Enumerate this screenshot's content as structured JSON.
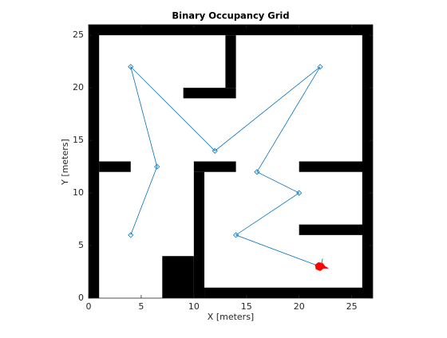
{
  "chart_data": {
    "type": "occupancy",
    "title": "Binary Occupancy Grid",
    "xlabel": "X [meters]",
    "ylabel": "Y [meters]",
    "xlim": [
      0,
      27
    ],
    "ylim": [
      0,
      26
    ],
    "xticks": [
      0,
      5,
      10,
      15,
      20,
      25
    ],
    "yticks": [
      0,
      5,
      10,
      15,
      20,
      25
    ],
    "obstacle_color": "#000000",
    "obstacles": [
      [
        0,
        0,
        1,
        26
      ],
      [
        0,
        25,
        27,
        1
      ],
      [
        26,
        0,
        1,
        26
      ],
      [
        11,
        0,
        16,
        1
      ],
      [
        7,
        0,
        3,
        4
      ],
      [
        10,
        0,
        1,
        12
      ],
      [
        13,
        20,
        1,
        5
      ],
      [
        9,
        19,
        5,
        1
      ],
      [
        1,
        12,
        3,
        1
      ],
      [
        10,
        12,
        4,
        1
      ],
      [
        20,
        12,
        7,
        1
      ],
      [
        20,
        6,
        7,
        1
      ]
    ],
    "series": [
      {
        "color": "#0072bd",
        "x": [
          4,
          6.5,
          4,
          12,
          22,
          16,
          20,
          14,
          22
        ],
        "y": [
          6,
          12.5,
          22,
          14,
          22,
          12,
          10,
          6,
          3
        ]
      }
    ],
    "robot": {
      "x": 22,
      "y": 3,
      "color": "#ff0000"
    }
  }
}
